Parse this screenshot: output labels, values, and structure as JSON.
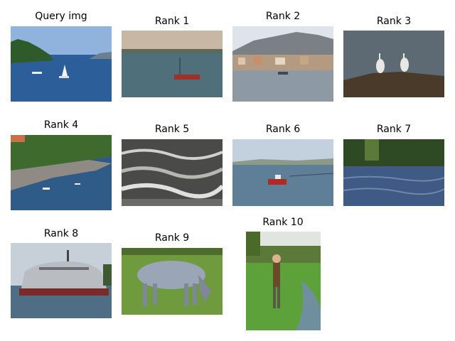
{
  "figure": {
    "query_title": "Query img",
    "results": [
      {
        "rank_label": "Rank 1"
      },
      {
        "rank_label": "Rank 2"
      },
      {
        "rank_label": "Rank 3"
      },
      {
        "rank_label": "Rank 4"
      },
      {
        "rank_label": "Rank 5"
      },
      {
        "rank_label": "Rank 6"
      },
      {
        "rank_label": "Rank 7"
      },
      {
        "rank_label": "Rank 8"
      },
      {
        "rank_label": "Rank 9"
      },
      {
        "rank_label": "Rank 10"
      }
    ]
  }
}
